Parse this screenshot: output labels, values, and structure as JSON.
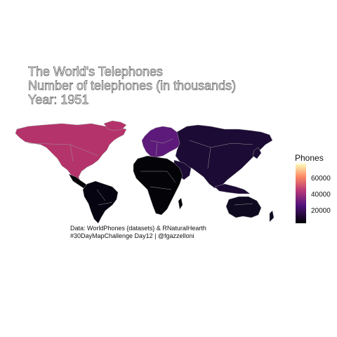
{
  "title_lines": [
    "The World's Telephones",
    "Number of telephones (in thousands)",
    "Year: 1951"
  ],
  "legend": {
    "title": "Phones",
    "ticks": [
      "60000",
      "40000",
      "20000"
    ],
    "tick_values": [
      60000,
      40000,
      20000
    ],
    "range": [
      0,
      80000
    ],
    "palette": "magma"
  },
  "caption": {
    "line1": "Data: WorldPhones {datasets} & RNaturalHearth",
    "line2": "#30DayMapChallenge Day12 | @fgazzelloni"
  },
  "regions": {
    "north_america": {
      "color": "#b5336b"
    },
    "europe": {
      "color": "#5d1a7a"
    },
    "asia": {
      "color": "#1c0b34"
    },
    "oceania": {
      "color": "#0f0a1f"
    },
    "south_america": {
      "color": "#050410"
    },
    "africa": {
      "color": "#030308"
    },
    "mid_america": {
      "color": "#030308"
    }
  },
  "colors": {
    "border": "#9a9a9a",
    "title_outline": "#555555"
  }
}
